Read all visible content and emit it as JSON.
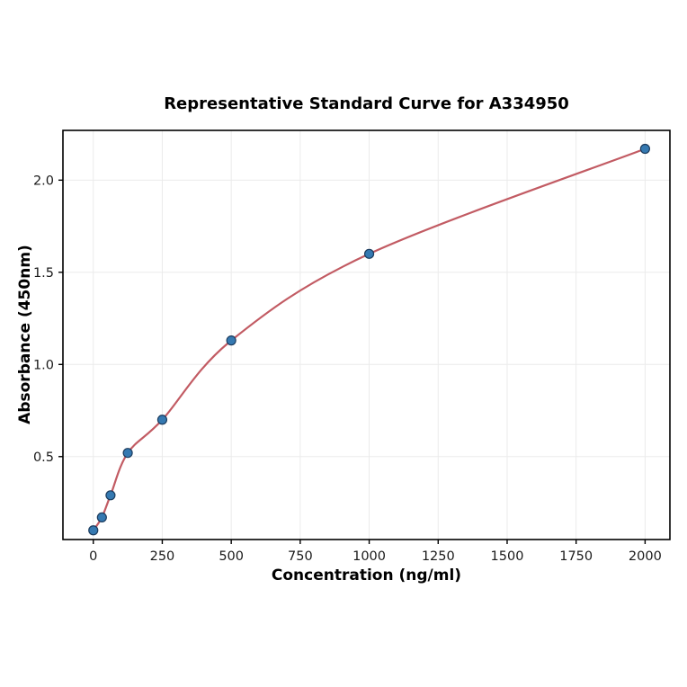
{
  "chart_data": {
    "type": "scatter",
    "title": "Representative Standard Curve for A334950",
    "xlabel": "Concentration (ng/ml)",
    "ylabel": "Absorbance (450nm)",
    "points": {
      "x": [
        0,
        31.2,
        62.5,
        125,
        250,
        500,
        1000,
        2000
      ],
      "y": [
        0.1,
        0.17,
        0.29,
        0.52,
        0.7,
        1.13,
        1.6,
        2.17
      ]
    },
    "xticks": [
      0,
      250,
      500,
      750,
      1000,
      1250,
      1500,
      1750,
      2000
    ],
    "yticks": [
      0.5,
      1.0,
      1.5,
      2.0
    ],
    "xlim": [
      -110,
      2090
    ],
    "ylim": [
      0.05,
      2.27
    ],
    "grid": true,
    "grid_color": "#ebebeb",
    "curve_color": "#c25b63",
    "point_fill": "#3579b1",
    "point_edge": "#1c3c5e",
    "frame_color": "#000000",
    "tick_label_color": "#1a1a1a"
  }
}
